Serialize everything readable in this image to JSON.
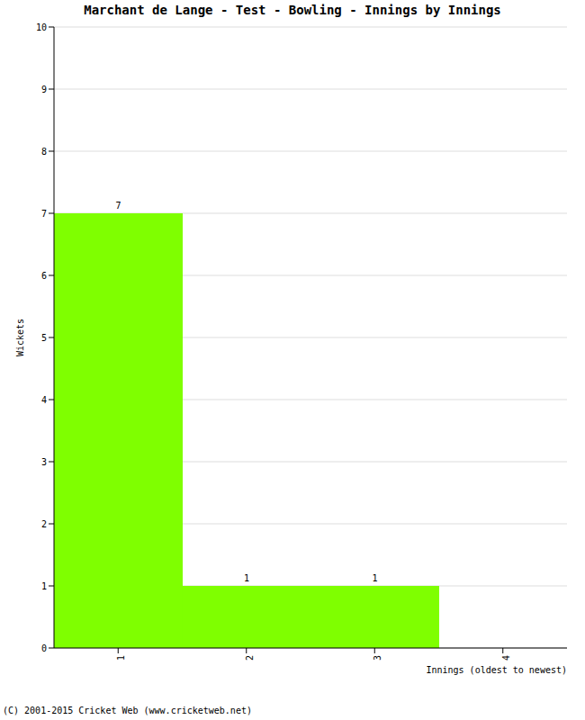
{
  "chart_data": {
    "type": "bar",
    "title": "Marchant de Lange - Test - Bowling - Innings by Innings",
    "x_label": "Innings (oldest to newest)",
    "y_label": "Wickets",
    "annotations": [
      "(C) 2001-2015 Cricket Web (www.cricketweb.net)"
    ],
    "categories": [
      "1",
      "2",
      "3",
      "4"
    ],
    "values": [
      7,
      1,
      1,
      0
    ],
    "color": "#7fff00",
    "ylim": [
      0,
      10
    ],
    "yticks": [
      0,
      1,
      2,
      3,
      4,
      5,
      6,
      7,
      8,
      9,
      10
    ],
    "grid": true,
    "data_labels": true
  }
}
